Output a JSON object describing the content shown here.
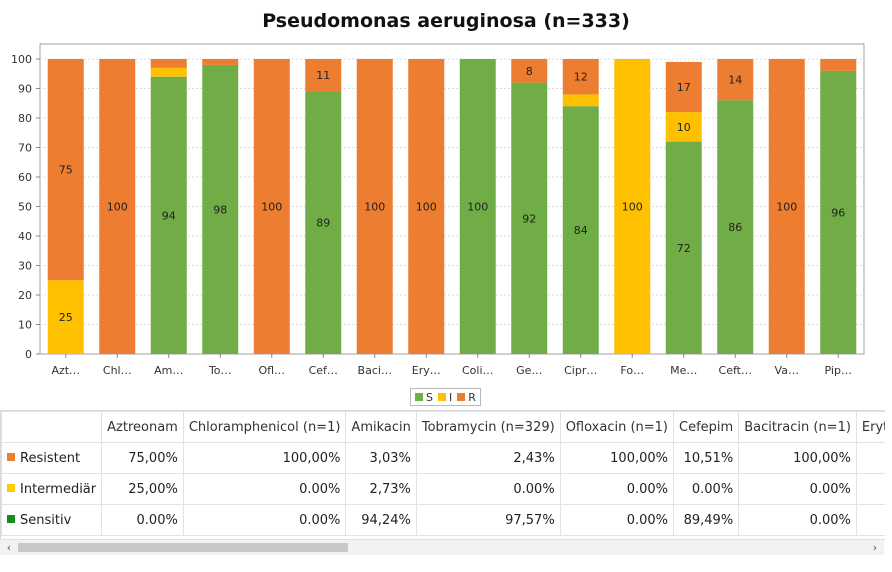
{
  "chart_data": {
    "type": "bar",
    "stacked": true,
    "title": "Pseudomonas aeruginosa (n=333)",
    "ylim": [
      0,
      100
    ],
    "yticks": [
      0,
      10,
      20,
      30,
      40,
      50,
      60,
      70,
      80,
      90,
      100
    ],
    "grid": true,
    "legend_position": "bottom",
    "categories": [
      "Azt…",
      "Chl…",
      "Am…",
      "To…",
      "Ofl…",
      "Cef…",
      "Baci…",
      "Ery…",
      "Coli…",
      "Ge…",
      "Cipr…",
      "Fo…",
      "Me…",
      "Ceft…",
      "Va…",
      "Pip…"
    ],
    "series": [
      {
        "name": "S",
        "color": "#70ad47",
        "values": [
          0,
          0,
          94,
          98,
          0,
          89,
          0,
          0,
          100,
          92,
          84,
          0,
          72,
          86,
          0,
          96
        ]
      },
      {
        "name": "I",
        "color": "#ffc000",
        "values": [
          25,
          0,
          3,
          0,
          0,
          0,
          0,
          0,
          0,
          0,
          4,
          100,
          10,
          0,
          0,
          0
        ]
      },
      {
        "name": "R",
        "color": "#ed7d31",
        "values": [
          75,
          100,
          3,
          2,
          100,
          11,
          100,
          100,
          0,
          8,
          12,
          0,
          17,
          14,
          100,
          4
        ]
      }
    ],
    "labels": [
      {
        "series": 1,
        "values": [
          25,
          null,
          null,
          null,
          null,
          null,
          null,
          null,
          null,
          null,
          null,
          100,
          10,
          null,
          null,
          null
        ]
      },
      {
        "series": 0,
        "values": [
          null,
          null,
          94,
          98,
          null,
          89,
          null,
          null,
          100,
          92,
          84,
          null,
          72,
          86,
          null,
          96
        ]
      },
      {
        "series": 2,
        "values": [
          75,
          100,
          null,
          null,
          100,
          11,
          100,
          100,
          null,
          8,
          12,
          null,
          17,
          14,
          100,
          null
        ]
      }
    ]
  },
  "table": {
    "columns": [
      "Aztreonam",
      "Chloramphenicol (n=1)",
      "Amikacin",
      "Tobramycin (n=329)",
      "Ofloxacin (n=1)",
      "Cefepim",
      "Bacitracin (n=1)",
      "Erythro"
    ],
    "rows": [
      {
        "label": "Resistent",
        "color": "#e8822e",
        "values": [
          "75,00%",
          "100,00%",
          "3,03%",
          "2,43%",
          "100,00%",
          "10,51%",
          "100,00%",
          ""
        ]
      },
      {
        "label": "Intermediär",
        "color": "#ffcc00",
        "values": [
          "25,00%",
          "0.00%",
          "2,73%",
          "0.00%",
          "0.00%",
          "0.00%",
          "0.00%",
          ""
        ]
      },
      {
        "label": "Sensitiv",
        "color": "#1a8a1a",
        "values": [
          "0.00%",
          "0.00%",
          "94,24%",
          "97,57%",
          "0.00%",
          "89,49%",
          "0.00%",
          ""
        ]
      }
    ]
  },
  "scrollbar": {
    "left_arrow": "‹",
    "right_arrow": "›"
  }
}
